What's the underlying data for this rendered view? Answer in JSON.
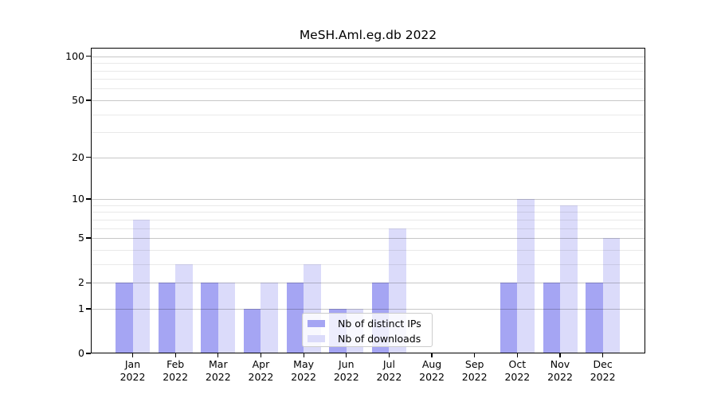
{
  "chart_data": {
    "type": "bar",
    "title": "MeSH.Aml.eg.db 2022",
    "categories": [
      "Jan",
      "Feb",
      "Mar",
      "Apr",
      "May",
      "Jun",
      "Jul",
      "Aug",
      "Sep",
      "Oct",
      "Nov",
      "Dec"
    ],
    "year_label": "2022",
    "series": [
      {
        "name": "Nb of distinct IPs",
        "color": "#a5a5f3",
        "values": [
          2,
          2,
          2,
          1,
          2,
          1,
          2,
          0,
          0,
          2,
          2,
          2
        ]
      },
      {
        "name": "Nb of downloads",
        "color": "#dbdbfa",
        "values": [
          7,
          3,
          2,
          2,
          3,
          1,
          6,
          0,
          0,
          10,
          9,
          5
        ]
      }
    ],
    "xlabel": "",
    "ylabel": "",
    "yscale": "log1p",
    "yticks": [
      0,
      1,
      2,
      5,
      10,
      20,
      50,
      100
    ],
    "gridlines": [
      1,
      2,
      3,
      4,
      5,
      6,
      7,
      8,
      9,
      10,
      20,
      30,
      40,
      50,
      60,
      70,
      80,
      90,
      100
    ],
    "ylim": [
      0,
      115
    ],
    "grid": true,
    "legend_position": "lower center"
  }
}
